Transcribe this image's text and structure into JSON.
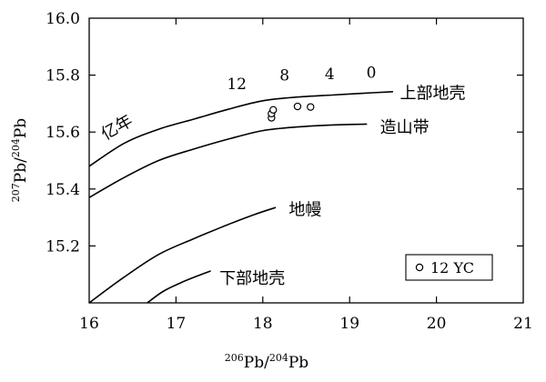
{
  "chart_data": {
    "type": "line",
    "xlabel_parts": [
      "206",
      "Pb/",
      "204",
      "Pb"
    ],
    "ylabel_parts": [
      "207",
      "Pb/",
      "204",
      "Pb"
    ],
    "xlim": [
      16,
      21
    ],
    "ylim": [
      15.0,
      16.0
    ],
    "xticks": [
      16,
      17,
      18,
      19,
      20,
      21
    ],
    "xtick_labels": [
      "16",
      "17",
      "18",
      "19",
      "20",
      "21"
    ],
    "yticks": [
      15.2,
      15.4,
      15.6,
      15.8,
      16.0
    ],
    "ytick_labels": [
      "15.2",
      "15.4",
      "15.6",
      "15.8",
      "16.0"
    ],
    "grid": false,
    "series": [
      {
        "name": "上部地壳",
        "line": [
          [
            16.0,
            15.48
          ],
          [
            16.4,
            15.56
          ],
          [
            16.8,
            15.61
          ],
          [
            17.2,
            15.645
          ],
          [
            17.6,
            15.68
          ],
          [
            18.0,
            15.71
          ],
          [
            18.4,
            15.723
          ],
          [
            18.8,
            15.73
          ],
          [
            19.2,
            15.737
          ],
          [
            19.5,
            15.742
          ]
        ],
        "label_at": [
          19.58,
          15.74
        ]
      },
      {
        "name": "造山带",
        "line": [
          [
            16.0,
            15.37
          ],
          [
            16.4,
            15.44
          ],
          [
            16.8,
            15.5
          ],
          [
            17.2,
            15.54
          ],
          [
            17.6,
            15.575
          ],
          [
            18.0,
            15.605
          ],
          [
            18.4,
            15.618
          ],
          [
            18.8,
            15.625
          ],
          [
            19.2,
            15.628
          ]
        ],
        "label_at": [
          19.35,
          15.62
        ]
      },
      {
        "name": "地幔",
        "line": [
          [
            16.0,
            15.0
          ],
          [
            16.4,
            15.09
          ],
          [
            16.8,
            15.17
          ],
          [
            17.2,
            15.225
          ],
          [
            17.6,
            15.275
          ],
          [
            17.9,
            15.31
          ],
          [
            18.15,
            15.335
          ]
        ],
        "label_at": [
          18.3,
          15.33
        ]
      },
      {
        "name": "下部地壳",
        "line": [
          [
            16.67,
            15.0
          ],
          [
            16.85,
            15.04
          ],
          [
            17.05,
            15.07
          ],
          [
            17.25,
            15.095
          ],
          [
            17.4,
            15.112
          ]
        ],
        "label_at": [
          17.5,
          15.09
        ]
      }
    ],
    "age_marks": [
      {
        "label": "12",
        "at": [
          17.7,
          15.77
        ]
      },
      {
        "label": "8",
        "at": [
          18.25,
          15.8
        ]
      },
      {
        "label": "4",
        "at": [
          18.77,
          15.805
        ]
      },
      {
        "label": "0",
        "at": [
          19.25,
          15.81
        ]
      }
    ],
    "age_axis_label": {
      "text": "亿年",
      "at": [
        16.35,
        15.6
      ],
      "rotate": -30
    },
    "samples": {
      "name": "12 YC",
      "points": [
        [
          18.1,
          15.65
        ],
        [
          18.1,
          15.665
        ],
        [
          18.12,
          15.678
        ],
        [
          18.4,
          15.69
        ],
        [
          18.55,
          15.688
        ]
      ]
    },
    "legend": {
      "position": "bottom-right",
      "entries": [
        "12 YC"
      ]
    }
  }
}
